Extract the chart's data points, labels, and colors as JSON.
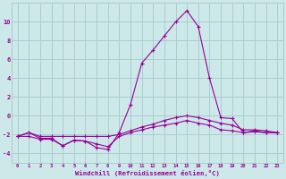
{
  "hours": [
    0,
    1,
    2,
    3,
    4,
    5,
    6,
    7,
    8,
    9,
    10,
    11,
    12,
    13,
    14,
    15,
    16,
    17,
    18,
    19,
    20,
    21,
    22,
    23
  ],
  "windchill": [
    -2.2,
    -1.8,
    -2.4,
    -2.4,
    -3.2,
    -2.6,
    -2.7,
    -3.4,
    -3.6,
    -1.8,
    1.2,
    5.6,
    7.0,
    8.5,
    10.0,
    11.2,
    9.5,
    4.0,
    -0.2,
    -0.3,
    -1.8,
    -1.6,
    -1.8,
    -1.8
  ],
  "temperature": [
    -2.2,
    -1.8,
    -2.2,
    -2.2,
    -2.2,
    -2.2,
    -2.2,
    -2.2,
    -2.2,
    -2.0,
    -1.6,
    -1.2,
    -0.9,
    -0.5,
    -0.2,
    0.0,
    -0.2,
    -0.5,
    -0.8,
    -1.0,
    -1.5,
    -1.5,
    -1.6,
    -1.8
  ],
  "feels_like": [
    -2.2,
    -2.2,
    -2.5,
    -2.5,
    -3.2,
    -2.6,
    -2.7,
    -3.0,
    -3.3,
    -2.2,
    -1.8,
    -1.5,
    -1.2,
    -1.0,
    -0.8,
    -0.5,
    -0.8,
    -1.0,
    -1.5,
    -1.6,
    -1.8,
    -1.7,
    -1.8,
    -1.8
  ],
  "line_color": "#990099",
  "bg_color": "#cce8e8",
  "grid_color": "#aacece",
  "xlabel": "Windchill (Refroidissement éolien,°C)",
  "ylim": [
    -5,
    12
  ],
  "xlim_min": -0.5,
  "xlim_max": 23.5,
  "yticks": [
    -4,
    -2,
    0,
    2,
    4,
    6,
    8,
    10
  ],
  "xticks": [
    0,
    1,
    2,
    3,
    4,
    5,
    6,
    7,
    8,
    9,
    10,
    11,
    12,
    13,
    14,
    15,
    16,
    17,
    18,
    19,
    20,
    21,
    22,
    23
  ]
}
